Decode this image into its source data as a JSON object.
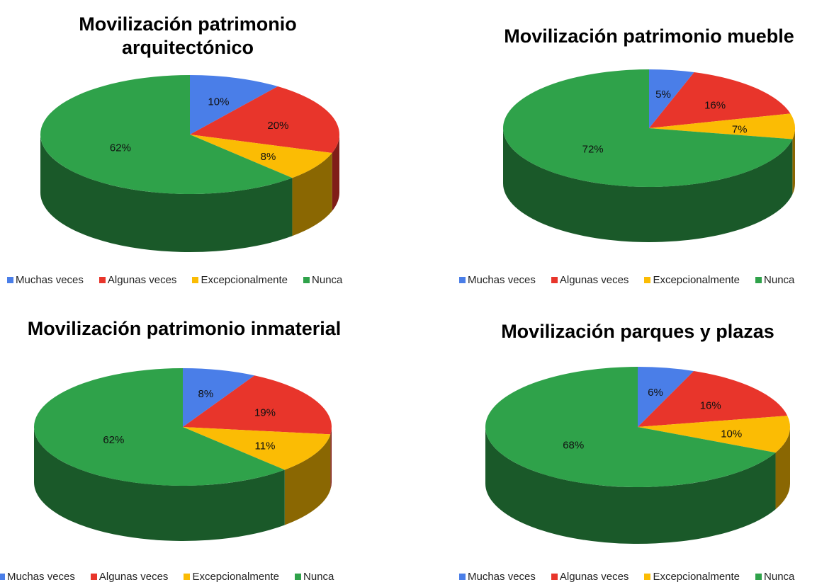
{
  "chart_data": [
    {
      "type": "pie",
      "title": "Movilización patrimonio arquitectónico",
      "categories": [
        "Muchas veces",
        "Algunas veces",
        "Excepcionalmente",
        "Nunca"
      ],
      "values": [
        10,
        20,
        8,
        62
      ],
      "value_labels": [
        "10%",
        "20%",
        "8%",
        "62%"
      ],
      "colors": [
        "#4a7ee8",
        "#e8352b",
        "#fbbc04",
        "#2fa24a"
      ],
      "legend": "bottom"
    },
    {
      "type": "pie",
      "title": "Movilización patrimonio mueble",
      "categories": [
        "Muchas veces",
        "Algunas veces",
        "Excepcionalmente",
        "Nunca"
      ],
      "values": [
        5,
        16,
        7,
        72
      ],
      "value_labels": [
        "5%",
        "16%",
        "7%",
        "72%"
      ],
      "colors": [
        "#4a7ee8",
        "#e8352b",
        "#fbbc04",
        "#2fa24a"
      ],
      "legend": "bottom"
    },
    {
      "type": "pie",
      "title": "Movilización patrimonio inmaterial",
      "categories": [
        "Muchas veces",
        "Algunas veces",
        "Excepcionalmente",
        "Nunca"
      ],
      "values": [
        8,
        19,
        11,
        62
      ],
      "value_labels": [
        "8%",
        "19%",
        "11%",
        "62%"
      ],
      "colors": [
        "#4a7ee8",
        "#e8352b",
        "#fbbc04",
        "#2fa24a"
      ],
      "legend": "bottom"
    },
    {
      "type": "pie",
      "title": "Movilización parques y plazas",
      "categories": [
        "Muchas veces",
        "Algunas veces",
        "Excepcionalmente",
        "Nunca"
      ],
      "values": [
        6,
        16,
        10,
        68
      ],
      "value_labels": [
        "6%",
        "16%",
        "10%",
        "68%"
      ],
      "colors": [
        "#4a7ee8",
        "#e8352b",
        "#fbbc04",
        "#2fa24a"
      ],
      "legend": "bottom"
    }
  ]
}
